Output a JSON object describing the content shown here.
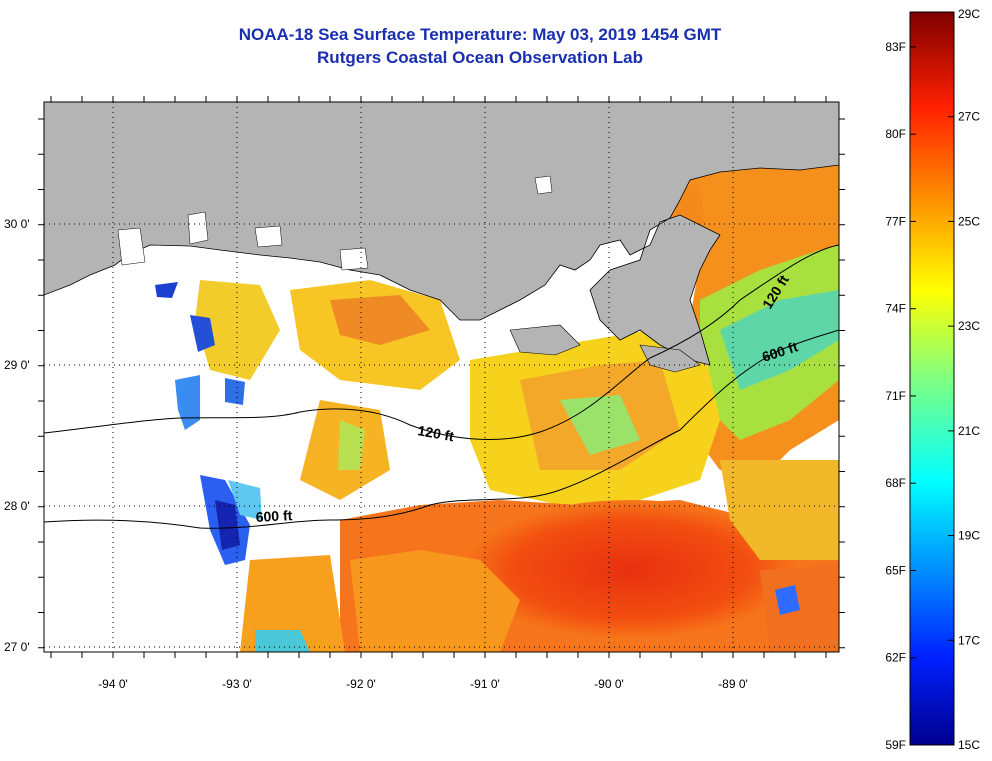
{
  "title": "NOAA-18 Sea Surface Temperature:  May 03, 2019 1454 GMT",
  "subtitle": "Rutgers Coastal Ocean Observation Lab",
  "map": {
    "lon_ticks": [
      "-94 0'",
      "-93 0'",
      "-92 0'",
      "-91 0'",
      "-90 0'",
      "-89 0'"
    ],
    "lat_ticks": [
      "30 0'",
      "29 0'",
      "28 0'",
      "27 0'"
    ],
    "contour_labels": [
      "120 ft",
      "600 ft",
      "120 ft",
      "600 ft"
    ],
    "colors": {
      "land": "#b4b4b4",
      "no_data": "#ffffff",
      "contour": "#000000",
      "grid": "#000000"
    }
  },
  "colorbar": {
    "fahrenheit_labels": [
      "83F",
      "80F",
      "77F",
      "74F",
      "71F",
      "68F",
      "65F",
      "62F",
      "59F"
    ],
    "celsius_labels": [
      "29C",
      "27C",
      "25C",
      "23C",
      "21C",
      "19C",
      "17C",
      "15C"
    ],
    "range_c": [
      15,
      29
    ],
    "range_f": [
      59,
      84.2
    ],
    "colormap": "jet"
  }
}
